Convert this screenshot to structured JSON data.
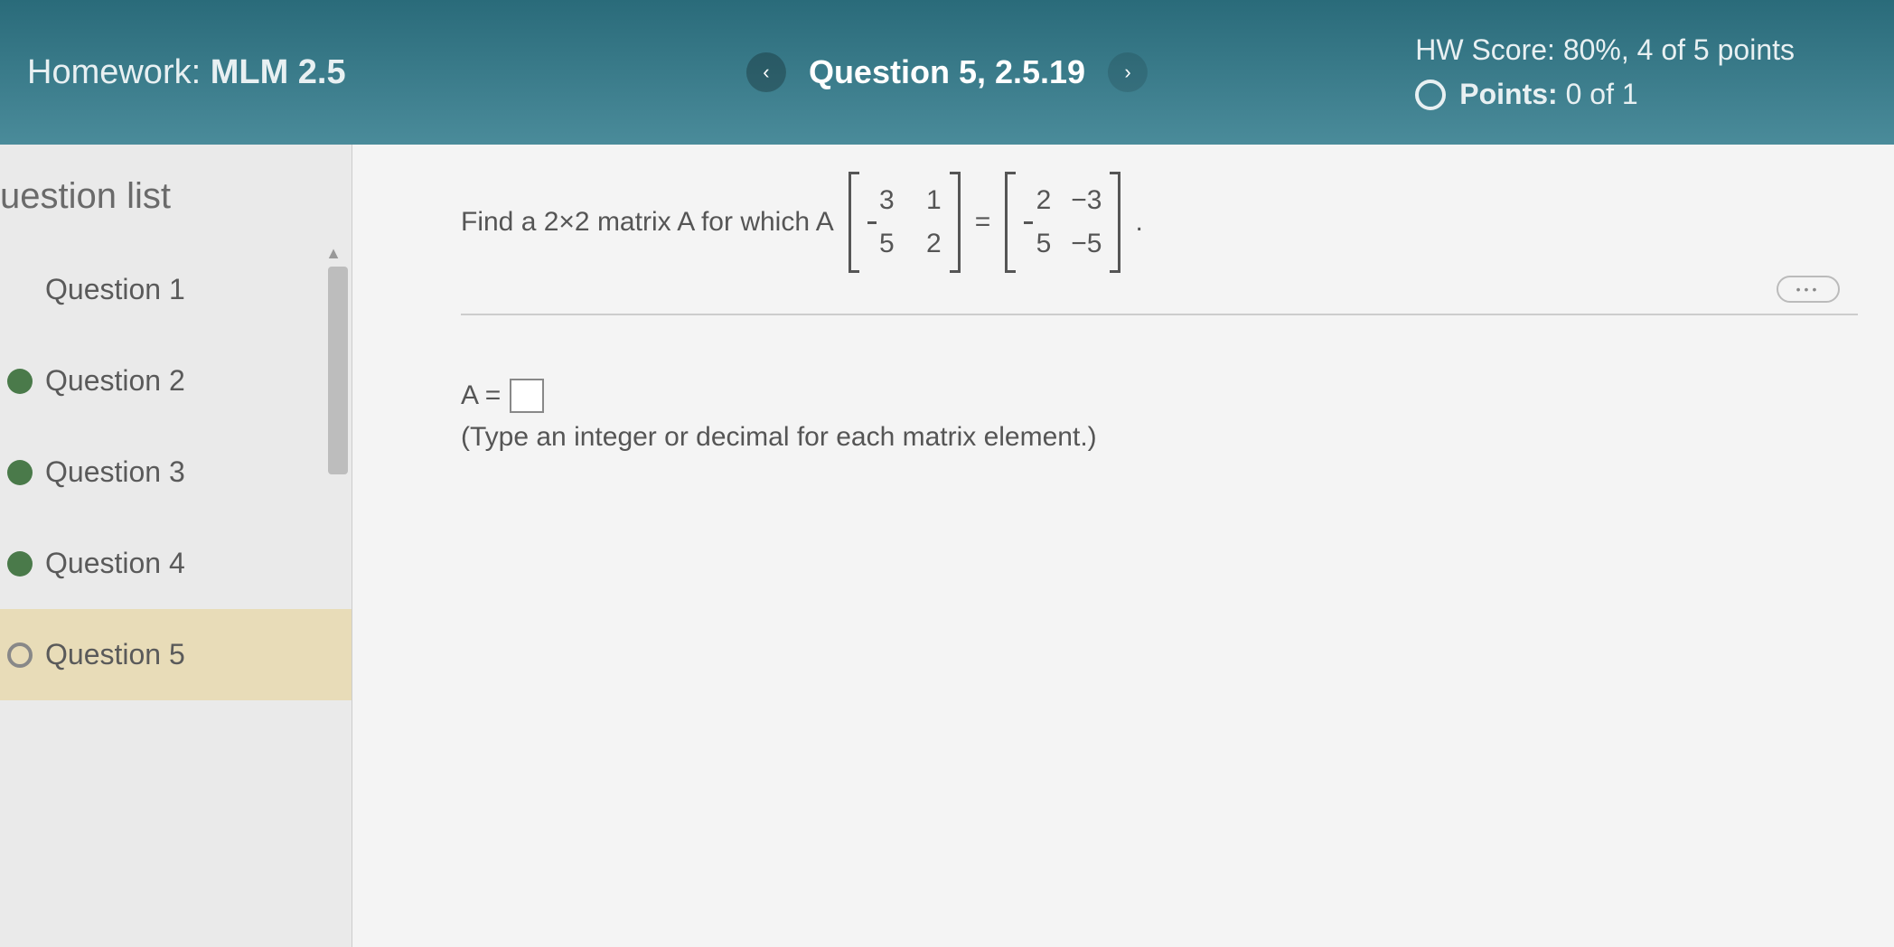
{
  "header": {
    "homework_prefix": "Homework: ",
    "homework_title": "MLM 2.5",
    "question_label": "Question 5, 2.5.19",
    "hw_score_label": "HW Score:",
    "hw_score_value": "80%, 4 of 5 points",
    "points_label": "Points:",
    "points_value": "0 of 1"
  },
  "sidebar": {
    "title": "uestion list",
    "items": [
      {
        "label": "Question 1",
        "status": "none"
      },
      {
        "label": "Question 2",
        "status": "complete"
      },
      {
        "label": "Question 3",
        "status": "complete"
      },
      {
        "label": "Question 4",
        "status": "complete"
      },
      {
        "label": "Question 5",
        "status": "open",
        "active": true
      }
    ]
  },
  "problem": {
    "prompt_prefix": "Find a 2×2 matrix A for which A",
    "matrix_left": {
      "rows": [
        [
          "3",
          "1"
        ],
        [
          "5",
          "2"
        ]
      ]
    },
    "equals": "=",
    "matrix_right": {
      "rows": [
        [
          "2",
          "−3"
        ],
        [
          "5",
          "−5"
        ]
      ]
    },
    "period": "."
  },
  "answer": {
    "lhs": "A =",
    "hint": "(Type an integer or decimal for each matrix element.)"
  },
  "more_pill": "•••"
}
